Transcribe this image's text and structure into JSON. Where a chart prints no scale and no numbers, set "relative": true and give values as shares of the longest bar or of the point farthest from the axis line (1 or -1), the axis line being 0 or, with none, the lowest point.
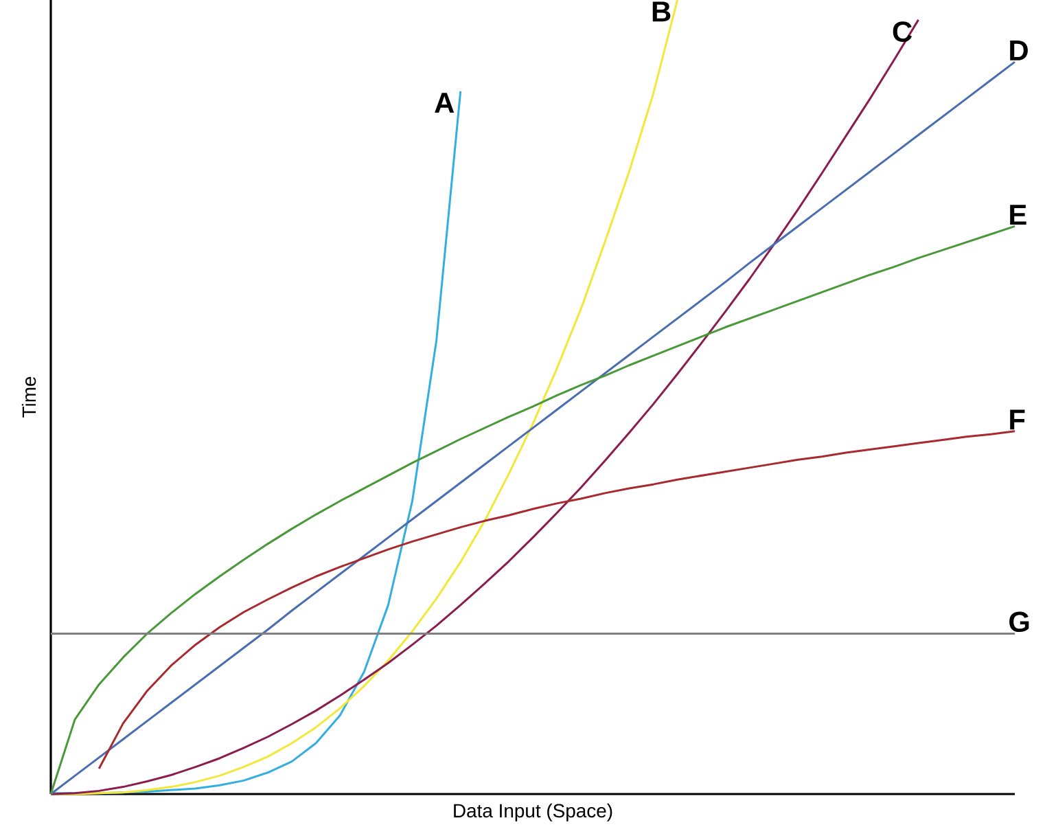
{
  "chart_data": {
    "type": "line",
    "relative": true,
    "xlabel": "Data Input (Space)",
    "ylabel": "Time",
    "line_style": "solid",
    "categories": [
      null,
      null,
      null,
      null,
      null,
      null,
      null,
      null,
      null,
      null,
      null,
      null,
      null,
      null,
      null,
      null,
      null,
      null,
      null,
      null,
      null,
      null,
      null,
      null,
      null,
      null,
      null,
      null,
      null,
      null,
      null,
      null,
      null,
      null,
      null,
      null,
      null,
      null,
      null,
      null,
      null
    ],
    "series": [
      {
        "name": "A",
        "color": "#33aee0",
        "values": [
          0.001,
          0.001,
          0.001,
          0.002,
          0.003,
          0.005,
          0.007,
          0.011,
          0.017,
          0.027,
          0.041,
          0.064,
          0.099,
          0.154,
          0.238,
          0.369,
          0.571,
          0.885,
          null,
          null,
          null,
          null,
          null,
          null,
          null,
          null,
          null,
          null,
          null,
          null,
          null,
          null,
          null,
          null,
          null,
          null,
          null,
          null,
          null,
          null,
          null
        ]
      },
      {
        "name": "B",
        "color": "#f2e83a",
        "values": [
          0,
          0,
          0.001,
          0.002,
          0.005,
          0.009,
          0.015,
          0.023,
          0.034,
          0.047,
          0.064,
          0.084,
          0.108,
          0.136,
          0.168,
          0.205,
          0.246,
          0.292,
          0.344,
          0.403,
          0.466,
          0.536,
          0.611,
          0.696,
          0.784,
          0.882,
          1,
          null,
          null,
          null,
          null,
          null,
          null,
          null,
          null,
          null,
          null,
          null,
          null,
          null,
          null
        ]
      },
      {
        "name": "C",
        "color": "#8a1d4e",
        "values": [
          0,
          0.001,
          0.004,
          0.009,
          0.016,
          0.024,
          0.034,
          0.045,
          0.058,
          0.072,
          0.088,
          0.105,
          0.124,
          0.144,
          0.165,
          0.188,
          0.212,
          0.238,
          0.265,
          0.293,
          0.323,
          0.354,
          0.386,
          0.42,
          0.455,
          0.491,
          0.529,
          0.568,
          0.608,
          0.649,
          0.692,
          0.736,
          0.782,
          0.829,
          0.876,
          0.925,
          0.975,
          null,
          null,
          null,
          null
        ]
      },
      {
        "name": "D",
        "color": "#4a6db0",
        "values": [
          0,
          0.023,
          0.046,
          0.069,
          0.092,
          0.115,
          0.138,
          0.161,
          0.184,
          0.207,
          0.231,
          0.254,
          0.277,
          0.3,
          0.323,
          0.346,
          0.369,
          0.392,
          0.415,
          0.438,
          0.461,
          0.484,
          0.507,
          0.53,
          0.553,
          0.576,
          0.599,
          0.622,
          0.645,
          0.669,
          0.692,
          0.715,
          0.738,
          0.761,
          0.784,
          0.807,
          0.83,
          0.853,
          0.876,
          0.899,
          0.922
        ]
      },
      {
        "name": "E",
        "color": "#4a983a",
        "values": [
          0,
          0.094,
          0.138,
          0.172,
          0.202,
          0.228,
          0.252,
          0.274,
          0.295,
          0.315,
          0.334,
          0.352,
          0.369,
          0.385,
          0.401,
          0.417,
          0.432,
          0.447,
          0.461,
          0.475,
          0.488,
          0.502,
          0.515,
          0.527,
          0.54,
          0.552,
          0.564,
          0.576,
          0.588,
          0.599,
          0.61,
          0.621,
          0.632,
          0.643,
          0.654,
          0.664,
          0.675,
          0.685,
          0.695,
          0.705,
          0.715
        ]
      },
      {
        "name": "F",
        "color": "#a82a2e",
        "values": [
          null,
          null,
          0.032,
          0.089,
          0.13,
          0.162,
          0.188,
          0.21,
          0.229,
          0.245,
          0.26,
          0.274,
          0.286,
          0.297,
          0.308,
          0.318,
          0.327,
          0.336,
          0.344,
          0.351,
          0.359,
          0.366,
          0.372,
          0.379,
          0.385,
          0.39,
          0.396,
          0.401,
          0.406,
          0.411,
          0.416,
          0.421,
          0.425,
          0.43,
          0.434,
          0.438,
          0.442,
          0.446,
          0.45,
          0.453,
          0.457
        ]
      },
      {
        "name": "G",
        "color": "#808080",
        "values": [
          0.202,
          0.202,
          0.202,
          0.202,
          0.202,
          0.202,
          0.202,
          0.202,
          0.202,
          0.202,
          0.202,
          0.202,
          0.202,
          0.202,
          0.202,
          0.202,
          0.202,
          0.202,
          0.202,
          0.202,
          0.202,
          0.202,
          0.202,
          0.202,
          0.202,
          0.202,
          0.202,
          0.202,
          0.202,
          0.202,
          0.202,
          0.202,
          0.202,
          0.202,
          0.202,
          0.202,
          0.202,
          0.202,
          0.202,
          0.202,
          0.202
        ]
      }
    ]
  }
}
